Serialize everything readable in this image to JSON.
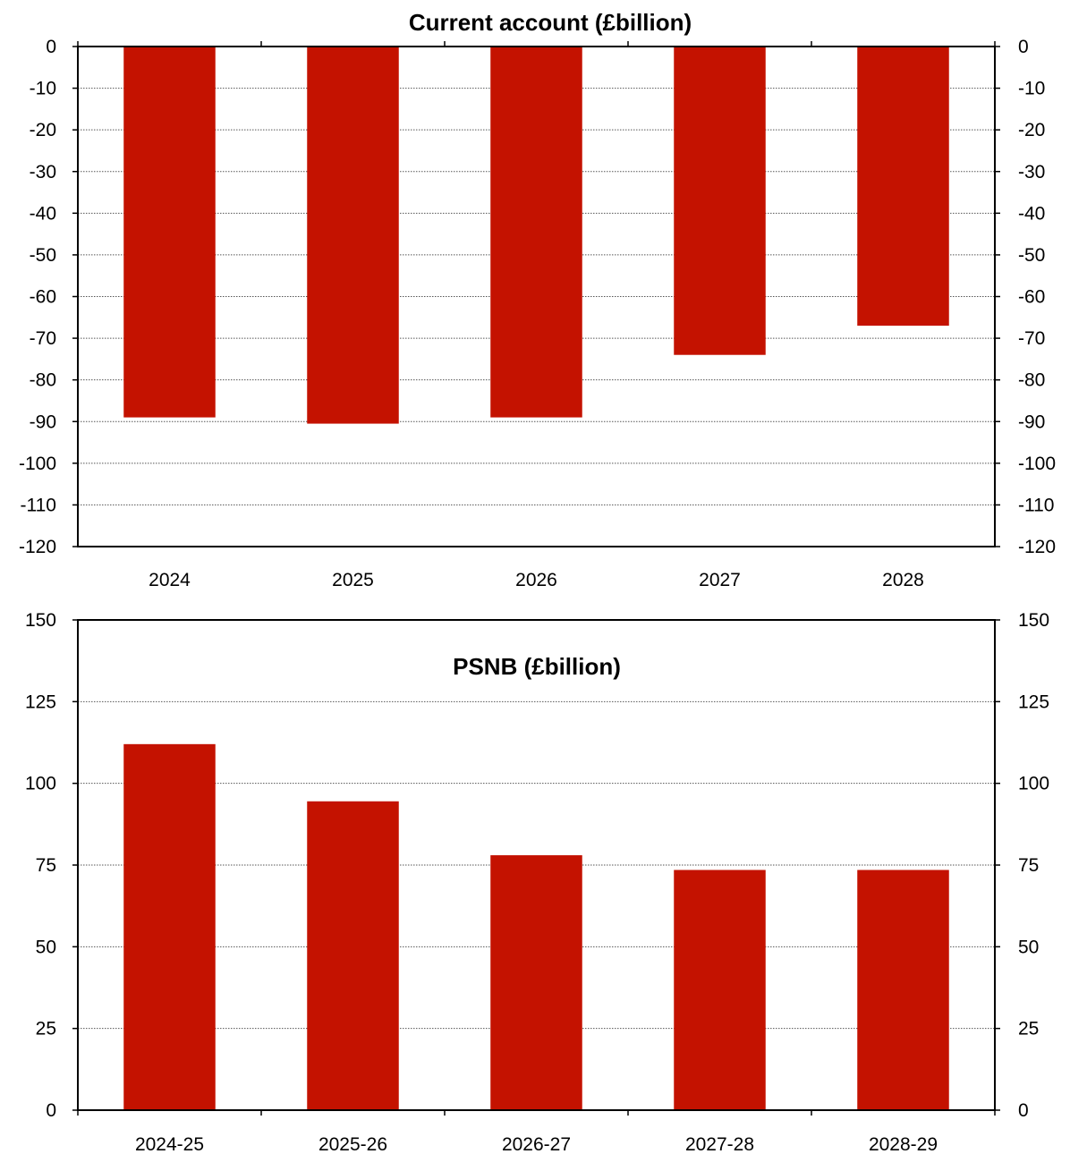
{
  "colors": {
    "bar": "#c41200",
    "axis": "#000000",
    "grid": "#555555"
  },
  "chart_data": [
    {
      "type": "bar",
      "title": "Current account (£billion)",
      "categories": [
        "2024",
        "2025",
        "2026",
        "2027",
        "2028"
      ],
      "values": [
        -89,
        -90.5,
        -89,
        -74,
        -67
      ],
      "ylim": [
        -120,
        0
      ],
      "ytick_step": 10,
      "grid": true,
      "y_axis_both_sides": true
    },
    {
      "type": "bar",
      "title": "PSNB (£billion)",
      "categories": [
        "2024-25",
        "2025-26",
        "2026-27",
        "2027-28",
        "2028-29"
      ],
      "values": [
        112,
        94.5,
        78,
        73.5,
        73.5
      ],
      "ylim": [
        0,
        150
      ],
      "ytick_step": 25,
      "grid": true,
      "y_axis_both_sides": true
    }
  ]
}
